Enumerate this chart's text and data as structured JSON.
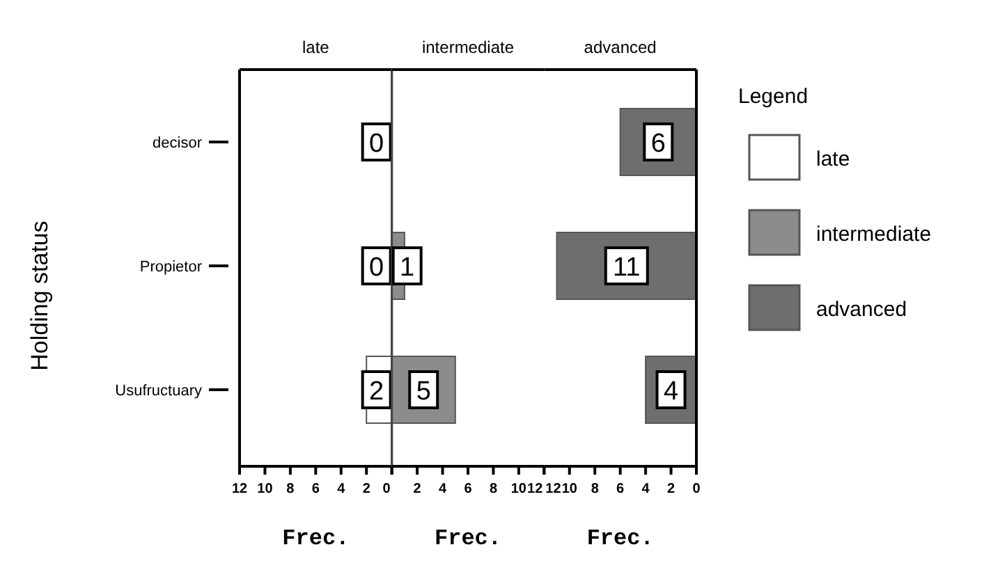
{
  "chart_data": [
    {
      "type": "bar",
      "orientation": "horizontal",
      "title": "late",
      "xlabel": "Frec.",
      "ylabel": "Holding status",
      "categories": [
        "decisor",
        "Propietor",
        "Usufructuary"
      ],
      "xlim": [
        12,
        0
      ],
      "xticks": [
        12,
        10,
        8,
        6,
        4,
        2,
        0
      ],
      "legend": "right",
      "series": [
        {
          "name": "late",
          "color": "#ffffff",
          "values": [
            0,
            0,
            2
          ],
          "value_labels": [
            "0",
            "0",
            "2"
          ]
        }
      ]
    },
    {
      "type": "bar",
      "orientation": "horizontal",
      "title": "intermediate",
      "xlabel": "Frec.",
      "xlim": [
        0,
        12
      ],
      "xticks": [
        {
          "value": 0,
          "label": null
        },
        2,
        4,
        6,
        8,
        10,
        12
      ],
      "tick_labels": "x",
      "legend": "right",
      "series": [
        {
          "name": "intermediate",
          "color": "#8c8c8c",
          "values": [
            0,
            1,
            5
          ],
          "value_labels": [
            null,
            "1",
            "5"
          ]
        }
      ]
    },
    {
      "type": "bar",
      "orientation": "horizontal",
      "title": "advanced",
      "xlabel": "Frec.",
      "xlim": [
        12,
        0
      ],
      "xticks": [
        12,
        10,
        8,
        6,
        4,
        2,
        0
      ],
      "tick_labels": "x",
      "legend": "right",
      "legend_title": "Legend",
      "series": [
        {
          "name": "advanced",
          "color": "#6e6e6e",
          "values": [
            6,
            11,
            4
          ],
          "value_labels": [
            "6",
            "11",
            "4"
          ]
        }
      ]
    }
  ]
}
